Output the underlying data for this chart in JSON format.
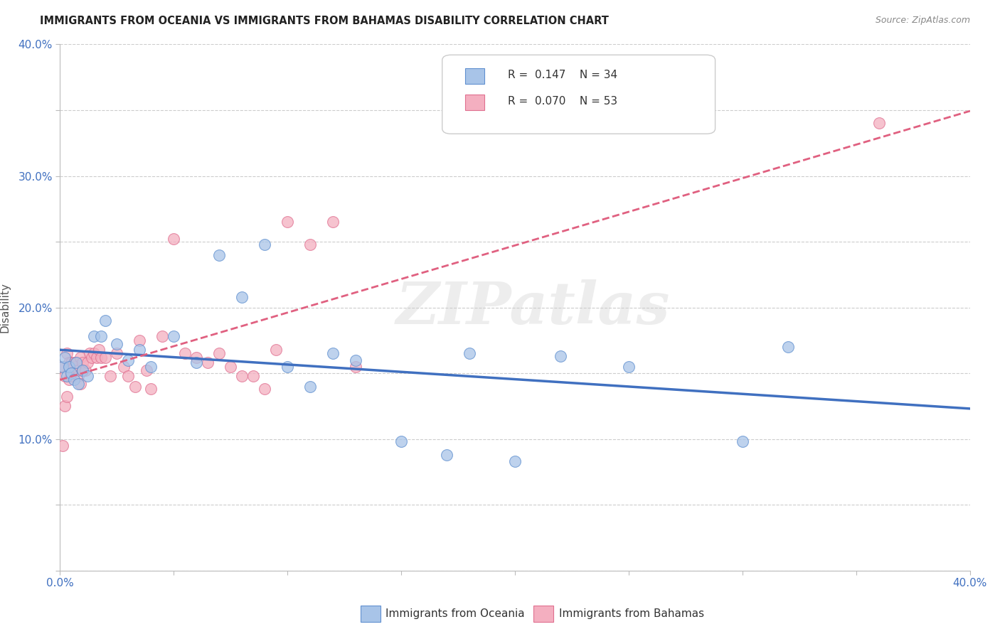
{
  "title": "IMMIGRANTS FROM OCEANIA VS IMMIGRANTS FROM BAHAMAS DISABILITY CORRELATION CHART",
  "source": "Source: ZipAtlas.com",
  "ylabel": "Disability",
  "xlim": [
    0.0,
    0.4
  ],
  "ylim": [
    0.0,
    0.4
  ],
  "ytick_positions": [
    0.0,
    0.05,
    0.1,
    0.15,
    0.2,
    0.25,
    0.3,
    0.35,
    0.4
  ],
  "xtick_positions": [
    0.0,
    0.05,
    0.1,
    0.15,
    0.2,
    0.25,
    0.3,
    0.35,
    0.4
  ],
  "ytick_labels": [
    "",
    "",
    "10.0%",
    "",
    "20.0%",
    "",
    "30.0%",
    "",
    "40.0%"
  ],
  "xtick_labels": [
    "0.0%",
    "",
    "",
    "",
    "",
    "",
    "",
    "",
    "40.0%"
  ],
  "blue_R": 0.147,
  "blue_N": 34,
  "pink_R": 0.07,
  "pink_N": 53,
  "blue_color": "#a8c4e8",
  "pink_color": "#f4afc0",
  "blue_edge_color": "#6090d0",
  "pink_edge_color": "#e07090",
  "blue_line_color": "#4070c0",
  "pink_line_color": "#e06080",
  "legend_label_blue": "Immigrants from Oceania",
  "legend_label_pink": "Immigrants from Bahamas",
  "watermark": "ZIPatlas",
  "blue_x": [
    0.001,
    0.002,
    0.003,
    0.004,
    0.005,
    0.006,
    0.007,
    0.008,
    0.01,
    0.012,
    0.015,
    0.018,
    0.02,
    0.025,
    0.03,
    0.035,
    0.04,
    0.05,
    0.06,
    0.07,
    0.08,
    0.09,
    0.1,
    0.11,
    0.12,
    0.13,
    0.15,
    0.17,
    0.18,
    0.2,
    0.22,
    0.25,
    0.3,
    0.32
  ],
  "blue_y": [
    0.155,
    0.162,
    0.148,
    0.155,
    0.15,
    0.145,
    0.158,
    0.142,
    0.152,
    0.148,
    0.178,
    0.178,
    0.19,
    0.172,
    0.16,
    0.168,
    0.155,
    0.178,
    0.158,
    0.24,
    0.208,
    0.248,
    0.155,
    0.14,
    0.165,
    0.16,
    0.098,
    0.088,
    0.165,
    0.083,
    0.163,
    0.155,
    0.098,
    0.17
  ],
  "pink_x": [
    0.001,
    0.001,
    0.002,
    0.002,
    0.003,
    0.003,
    0.004,
    0.004,
    0.005,
    0.005,
    0.006,
    0.006,
    0.007,
    0.007,
    0.008,
    0.008,
    0.009,
    0.009,
    0.01,
    0.01,
    0.011,
    0.012,
    0.013,
    0.014,
    0.015,
    0.016,
    0.017,
    0.018,
    0.02,
    0.022,
    0.025,
    0.028,
    0.03,
    0.033,
    0.035,
    0.038,
    0.04,
    0.045,
    0.05,
    0.055,
    0.06,
    0.065,
    0.07,
    0.075,
    0.08,
    0.085,
    0.09,
    0.095,
    0.1,
    0.11,
    0.12,
    0.13,
    0.36
  ],
  "pink_y": [
    0.155,
    0.095,
    0.148,
    0.125,
    0.165,
    0.132,
    0.158,
    0.145,
    0.158,
    0.148,
    0.158,
    0.155,
    0.152,
    0.158,
    0.152,
    0.148,
    0.142,
    0.162,
    0.152,
    0.158,
    0.152,
    0.158,
    0.165,
    0.162,
    0.165,
    0.162,
    0.168,
    0.162,
    0.162,
    0.148,
    0.165,
    0.155,
    0.148,
    0.14,
    0.175,
    0.152,
    0.138,
    0.178,
    0.252,
    0.165,
    0.162,
    0.158,
    0.165,
    0.155,
    0.148,
    0.148,
    0.138,
    0.168,
    0.265,
    0.248,
    0.265,
    0.155,
    0.34
  ]
}
